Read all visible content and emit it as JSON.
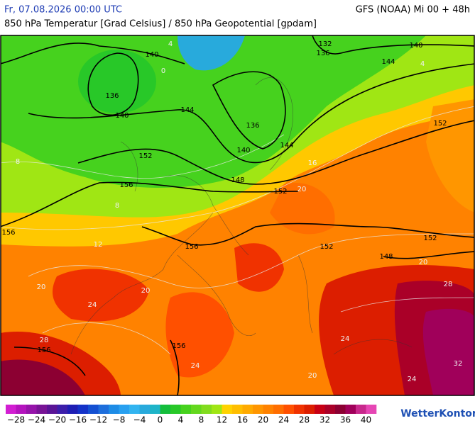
{
  "header": {
    "left": "Fr, 07.08.2026 00:00 UTC",
    "right": "GFS (NOAA) Mi 00 + 48h",
    "subtitle": "850 hPa Temperatur [Grad Celsius] / 850 hPa Geopotential [gpdam]"
  },
  "map": {
    "geopotential_labels": [
      132,
      136,
      140,
      140,
      144,
      136,
      140,
      144,
      136,
      140,
      144,
      152,
      156,
      148,
      152,
      156,
      156,
      152,
      148,
      152,
      152,
      156,
      156
    ],
    "temperature_labels": [
      0,
      4,
      4,
      8,
      8,
      12,
      16,
      20,
      20,
      20,
      24,
      28,
      24,
      20,
      24,
      28,
      32,
      24,
      20
    ]
  },
  "colorbar": {
    "bins": [
      -30,
      -28,
      -26,
      -24,
      -22,
      -20,
      -18,
      -16,
      -14,
      -12,
      -10,
      -8,
      -6,
      -4,
      -2,
      0,
      2,
      4,
      6,
      8,
      10,
      12,
      14,
      16,
      18,
      20,
      22,
      24,
      26,
      28,
      30,
      32,
      34,
      36,
      38,
      40,
      42
    ],
    "colors": [
      "#d21ed2",
      "#b414be",
      "#9614aa",
      "#781496",
      "#5a1496",
      "#3c1eaa",
      "#1e1eb4",
      "#1432c8",
      "#1450d2",
      "#1e6edc",
      "#1e8ce6",
      "#28a0f0",
      "#32b4f0",
      "#28aadc",
      "#1eb4c8",
      "#14be3c",
      "#28c828",
      "#46d21e",
      "#64d81e",
      "#82dc1e",
      "#a0e614",
      "#ffd200",
      "#ffbe00",
      "#ffaa00",
      "#ff9600",
      "#ff8200",
      "#ff6e00",
      "#ff5000",
      "#f03200",
      "#dc1e00",
      "#c80014",
      "#aa0028",
      "#8c0032",
      "#a0005a",
      "#c8288c",
      "#e646b4"
    ],
    "ticks": [
      {
        "value": -28,
        "label": "−28"
      },
      {
        "value": -24,
        "label": "−24"
      },
      {
        "value": -20,
        "label": "−20"
      },
      {
        "value": -16,
        "label": "−16"
      },
      {
        "value": -12,
        "label": "−12"
      },
      {
        "value": -8,
        "label": "−8"
      },
      {
        "value": -4,
        "label": "−4"
      },
      0,
      4,
      8,
      12,
      16,
      20,
      24,
      28,
      32,
      36,
      40
    ]
  },
  "logo": "WetterKontor"
}
